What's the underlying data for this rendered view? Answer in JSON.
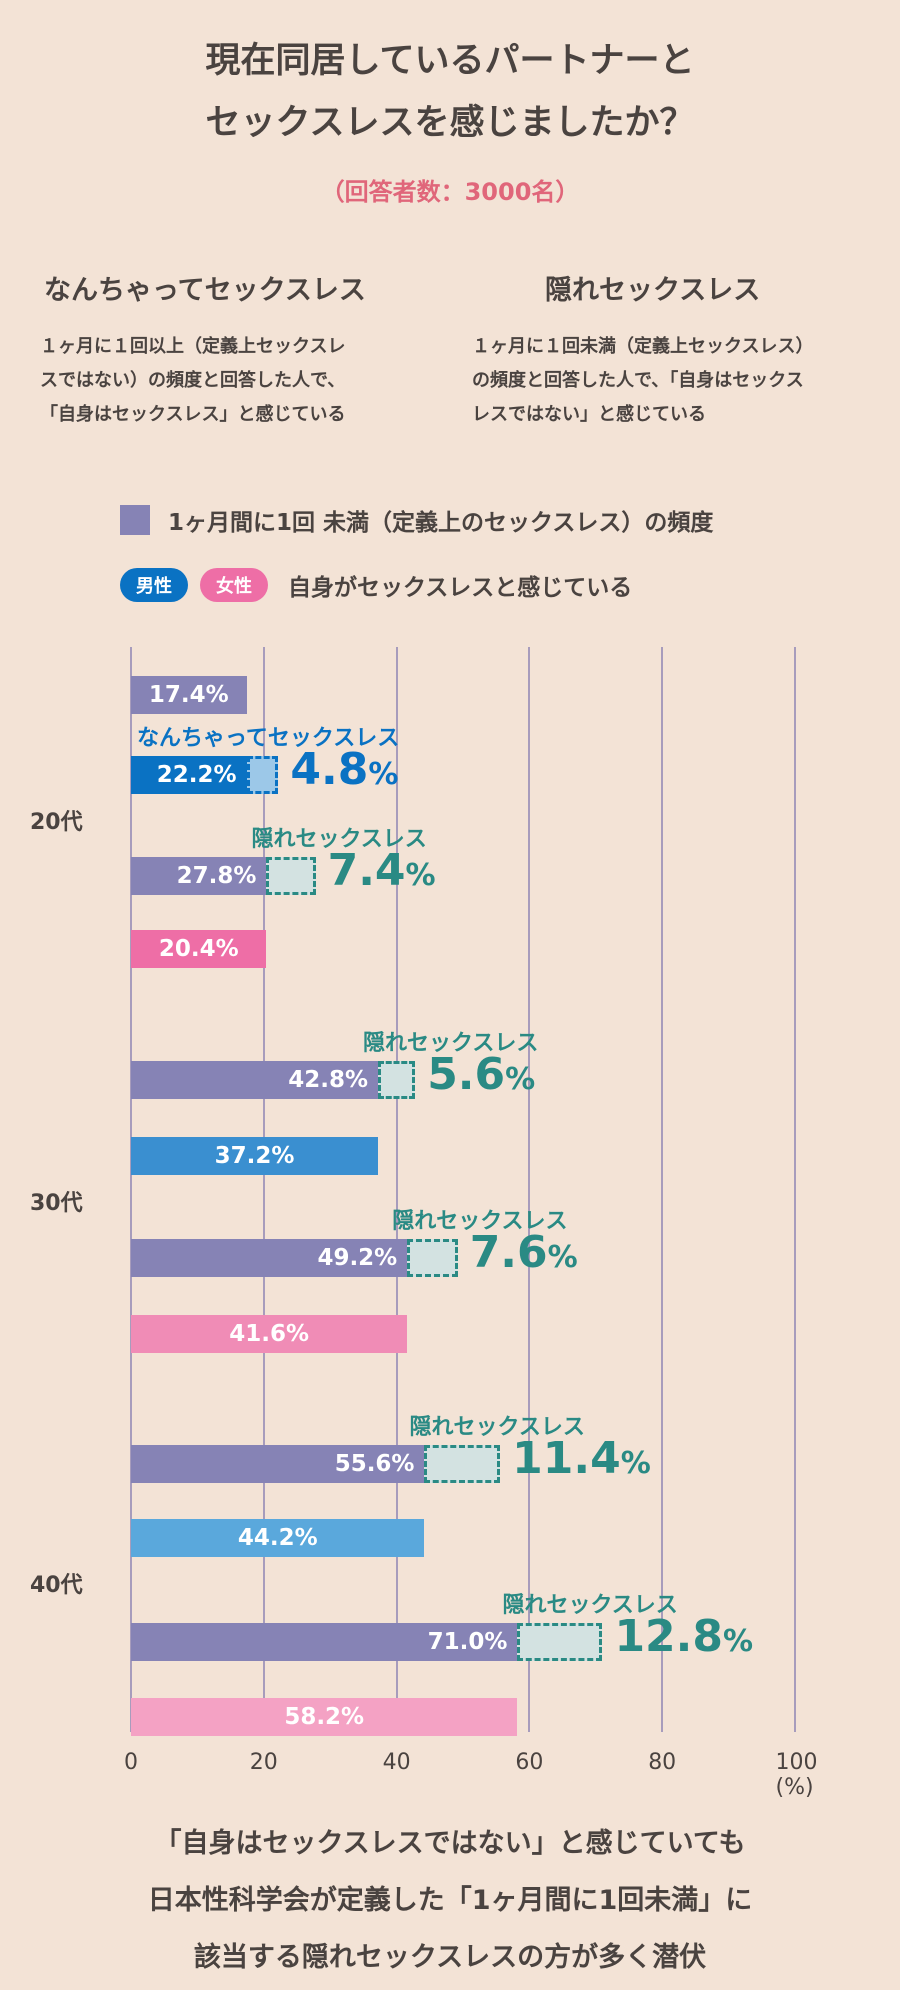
{
  "title": [
    "現在同居しているパートナーと",
    "セックスレスを感じましたか？"
  ],
  "subtitle": "（回答者数：3000名）",
  "definitions": [
    {
      "heading": "なんちゃってセックスレス",
      "text": [
        "１ヶ月に１回以上（定義上セックスレ",
        "スではない）の頻度と回答した人で、",
        "「自身はセックスレス」と感じている"
      ]
    },
    {
      "heading": "隠れセックスレス",
      "text": [
        "１ヶ月に１回未満（定義上セックスレス）",
        "の頻度と回答した人で、「自身はセックス",
        "レスではない」と感じている"
      ]
    }
  ],
  "legend": {
    "purple": "1ヶ月間に1回 未満（定義上のセックスレス）の頻度",
    "male": "男性",
    "female": "女性",
    "self": "自身がセックスレスと感じている"
  },
  "colors": {
    "purple": "#8683b5",
    "teal": "#2a8a84",
    "background": "#f3e3d6",
    "title_accent": "#e0667a"
  },
  "chart_data": {
    "type": "bar",
    "orientation": "horizontal",
    "xlim": [
      0,
      100
    ],
    "xticks": [
      "0",
      "20",
      "40",
      "60",
      "80",
      "100 (%)"
    ],
    "grid": true,
    "groups": [
      {
        "label": "20代",
        "rows": [
          {
            "label": "17.4%",
            "solid": 17.4,
            "dashed": 0,
            "color": "#8683b5"
          },
          {
            "label": "22.2%",
            "solid": 17.4,
            "dashed": 4.8,
            "color": "#0a72c3",
            "dash_color": "#0a72c3",
            "dash_fill": "#9cc8e8",
            "annotation": "なんちゃってセックスレス",
            "annotation_value": "4.8",
            "annotation_color": "#0a72c3"
          },
          {
            "label": "27.8%",
            "solid": 20.4,
            "dashed": 7.4,
            "color": "#8683b5",
            "annotation": "隠れセックスレス",
            "annotation_value": "7.4",
            "annotation_color": "#2a8a84"
          },
          {
            "label": "20.4%",
            "solid": 20.4,
            "dashed": 0,
            "color": "#ee6ea6"
          }
        ]
      },
      {
        "label": "30代",
        "rows": [
          {
            "label": "42.8%",
            "solid": 37.2,
            "dashed": 5.6,
            "color": "#8683b5",
            "annotation": "隠れセックスレス",
            "annotation_value": "5.6",
            "annotation_color": "#2a8a84"
          },
          {
            "label": "37.2%",
            "solid": 37.2,
            "dashed": 0,
            "color": "#3a8fd0"
          },
          {
            "label": "49.2%",
            "solid": 41.6,
            "dashed": 7.6,
            "color": "#8683b5",
            "annotation": "隠れセックスレス",
            "annotation_value": "7.6",
            "annotation_color": "#2a8a84"
          },
          {
            "label": "41.6%",
            "solid": 41.6,
            "dashed": 0,
            "color": "#f08cb6"
          }
        ]
      },
      {
        "label": "40代",
        "rows": [
          {
            "label": "55.6%",
            "solid": 44.2,
            "dashed": 11.4,
            "color": "#8683b5",
            "annotation": "隠れセックスレス",
            "annotation_value": "11.4",
            "annotation_color": "#2a8a84"
          },
          {
            "label": "44.2%",
            "solid": 44.2,
            "dashed": 0,
            "color": "#5aa8dc"
          },
          {
            "label": "71.0%",
            "solid": 58.2,
            "dashed": 12.8,
            "color": "#8683b5",
            "annotation": "隠れセックスレス",
            "annotation_value": "12.8",
            "annotation_color": "#2a8a84"
          },
          {
            "label": "58.2%",
            "solid": 58.2,
            "dashed": 0,
            "color": "#f4a2c4"
          }
        ]
      }
    ]
  },
  "percent_sign": "%",
  "conclusion": [
    "「自身はセックスレスではない」と感じていても",
    "日本性科学会が定義した「1ヶ月間に1回未満」に",
    "該当する隠れセックスレスの方が多く潜伏"
  ]
}
